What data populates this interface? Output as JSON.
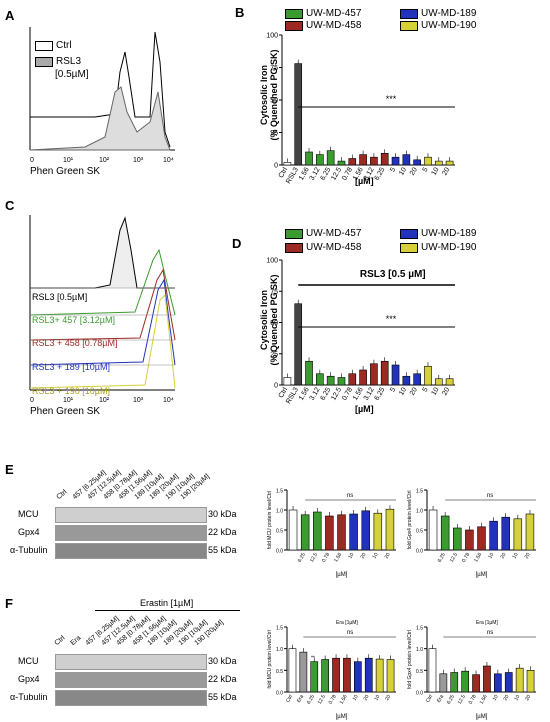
{
  "panels": {
    "A": {
      "label": "A",
      "xlabel": "Phen Green SK",
      "legend": [
        "Ctrl",
        "RSL3",
        "[0.5µM]"
      ],
      "ticks": [
        "0",
        "10¹",
        "10²",
        "10³",
        "10⁴"
      ]
    },
    "B": {
      "label": "B",
      "legend": [
        "UW-MD-457",
        "UW-MD-458",
        "UW-MD-189",
        "UW-MD-190"
      ],
      "ylabel": "Cytosolic Iron\n(% Quenched PG SK)",
      "xlabel": "[µM]",
      "sig": "***",
      "yticks": [
        "0",
        "25",
        "50",
        "75",
        "100"
      ],
      "xt": [
        "Ctrl",
        "RSL3",
        "1.56",
        "3.12",
        "6.25",
        "12.5",
        "0.78",
        "1.56",
        "3.12",
        "6.25",
        "5",
        "10",
        "20",
        "5",
        "10",
        "20"
      ]
    },
    "C": {
      "label": "C",
      "xlabel": "Phen Green SK",
      "rows": [
        "RSL3 [0.5µM]",
        "RSL3+ 457 [3.12µM]",
        "RSL3 + 458 [0.78µM]",
        "RSL3 + 189 [10µM]",
        "RSL3 + 190 [10µM]"
      ],
      "ticks": [
        "0",
        "10¹",
        "10²",
        "10³",
        "10⁴"
      ]
    },
    "D": {
      "label": "D",
      "legend": [
        "UW-MD-457",
        "UW-MD-458",
        "UW-MD-189",
        "UW-MD-190"
      ],
      "ylabel": "Cytosolic Iron\n(% Quenched PG SK)",
      "xlabel": "[µM]",
      "bracket": "RSL3 [0.5 µM]",
      "sig": "***",
      "yticks": [
        "0",
        "25",
        "50",
        "75",
        "100"
      ],
      "xt": [
        "Ctrl",
        "RSL3",
        "1.56",
        "3.12",
        "6.25",
        "12.5",
        "0.78",
        "1.56",
        "3.12",
        "6.25",
        "5",
        "10",
        "20",
        "5",
        "10",
        "20"
      ]
    },
    "E": {
      "label": "E",
      "lanes": [
        "Ctrl",
        "457 [6.25µM]",
        "457 [12.5µM]",
        "458 [0.78µM]",
        "458 [1.56µM]",
        "189 [10µM]",
        "189 [20µM]",
        "190 [10µM]",
        "190 [20µM]"
      ],
      "rows": [
        "MCU",
        "Gpx4",
        "α-Tubulin"
      ],
      "kda": [
        "30 kDa",
        "22 kDa",
        "55 kDa"
      ],
      "ylab1": "fold MCU protein level/Ctrl",
      "ylab2": "fold Gpx4 protein level/Ctrl",
      "ns": "ns",
      "xunit": "[µM]",
      "xt": [
        "6.25",
        "12.5",
        "0.78",
        "1.56",
        "10",
        "20",
        "10",
        "20"
      ]
    },
    "F": {
      "label": "F",
      "treat": "Erastin [1µM]",
      "lanes": [
        "Ctrl",
        "Era",
        "457 [6.25µM]",
        "457 [12.5µM]",
        "458 [0.78µM]",
        "458 [1.56µM]",
        "189 [10µM]",
        "189 [20µM]",
        "190 [10µM]",
        "190 [20µM]"
      ],
      "rows": [
        "MCU",
        "Gpx4",
        "α-Tubulin"
      ],
      "kda": [
        "30 kDa",
        "22 kDa",
        "55 kDa"
      ],
      "ylab1": "fold MCU protein level/Ctrl",
      "ylab2": "fold Gpx4 protein level/Ctrl",
      "era": "Era [1µM]",
      "ns": "ns",
      "xunit": "[µM]",
      "sig1": "**",
      "xt": [
        "Ctrl",
        "Era",
        "6.25",
        "12.5",
        "0.78",
        "1.56",
        "10",
        "20",
        "10",
        "20"
      ]
    }
  },
  "colors": {
    "ctrl": "#ffffff",
    "rsl3": "#444444",
    "g457": "#3a9c2e",
    "r458": "#9b2a22",
    "b189": "#2233bb",
    "y190": "#d6d03a",
    "era": "#9a9a9a"
  },
  "chart_data": [
    {
      "type": "bar",
      "panel": "B",
      "categories": [
        "Ctrl",
        "RSL3",
        "1.56",
        "3.12",
        "6.25",
        "12.5",
        "0.78",
        "1.56",
        "3.12",
        "6.25",
        "5",
        "10",
        "20",
        "5",
        "10",
        "20"
      ],
      "values": [
        2,
        78,
        10,
        8,
        11,
        3,
        5,
        8,
        6,
        9,
        6,
        8,
        4,
        6,
        3,
        3
      ],
      "ylim": [
        0,
        100
      ]
    },
    {
      "type": "bar",
      "panel": "D",
      "categories": [
        "Ctrl",
        "RSL3",
        "1.56",
        "3.12",
        "6.25",
        "12.5",
        "0.78",
        "1.56",
        "3.12",
        "6.25",
        "5",
        "10",
        "20",
        "5",
        "10",
        "20"
      ],
      "values": [
        6,
        65,
        19,
        9,
        7,
        6,
        9,
        12,
        17,
        19,
        16,
        7,
        9,
        15,
        5,
        5
      ],
      "ylim": [
        0,
        100
      ]
    },
    {
      "type": "bar",
      "panel": "E-MCU",
      "categories": [
        "Ctrl",
        "6.25",
        "12.5",
        "0.78",
        "1.56",
        "10",
        "20",
        "10",
        "20"
      ],
      "values": [
        1.0,
        0.88,
        0.95,
        0.85,
        0.88,
        0.9,
        0.98,
        0.92,
        1.02
      ],
      "ylim": [
        0,
        1.5
      ]
    },
    {
      "type": "bar",
      "panel": "E-Gpx4",
      "categories": [
        "Ctrl",
        "6.25",
        "12.5",
        "0.78",
        "1.56",
        "10",
        "20",
        "10",
        "20"
      ],
      "values": [
        1.0,
        0.85,
        0.55,
        0.5,
        0.58,
        0.72,
        0.82,
        0.78,
        0.9
      ],
      "ylim": [
        0,
        1.5
      ]
    },
    {
      "type": "bar",
      "panel": "F-MCU",
      "categories": [
        "Ctrl",
        "Era",
        "6.25",
        "12.5",
        "0.78",
        "1.56",
        "10",
        "20",
        "10",
        "20"
      ],
      "values": [
        1.0,
        0.92,
        0.7,
        0.75,
        0.78,
        0.78,
        0.7,
        0.78,
        0.76,
        0.75
      ],
      "ylim": [
        0,
        1.5
      ]
    },
    {
      "type": "bar",
      "panel": "F-Gpx4",
      "categories": [
        "Ctrl",
        "Era",
        "6.25",
        "12.5",
        "0.78",
        "1.56",
        "10",
        "20",
        "10",
        "20"
      ],
      "values": [
        1.0,
        0.42,
        0.45,
        0.48,
        0.4,
        0.6,
        0.42,
        0.45,
        0.55,
        0.5
      ],
      "ylim": [
        0,
        1.5
      ]
    }
  ]
}
